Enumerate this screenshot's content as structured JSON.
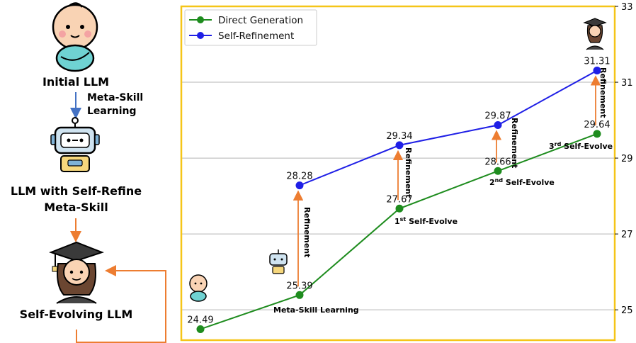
{
  "pipeline": {
    "initial_label": "Initial LLM",
    "meta_skill_label_line1": "Meta-Skill",
    "meta_skill_label_line2": "Learning",
    "selfrefine_label_line1": "LLM with Self-Refine",
    "selfrefine_label_line2": "Meta-Skill",
    "evolving_label": "Self-Evolving LLM",
    "icons": [
      "baby-icon",
      "robot-icon",
      "graduate-icon"
    ],
    "arrow_colors": {
      "blue": "#4472c4",
      "orange": "#ed7d31"
    }
  },
  "chart_data": {
    "type": "line",
    "title": "",
    "xlabel": "",
    "ylabel": "",
    "ylim": [
      24.2,
      33
    ],
    "yticks": [
      25,
      27,
      29,
      31,
      33
    ],
    "grid": "horizontal",
    "legend_position": "top-left",
    "frame_color": "#f5c518",
    "series": [
      {
        "name": "Direct Generation",
        "color": "#1e8c1e",
        "values": [
          24.49,
          25.39,
          27.67,
          28.66,
          29.64
        ]
      },
      {
        "name": "Self-Refinement",
        "color": "#1f1fe6",
        "values": [
          null,
          28.28,
          29.34,
          29.87,
          31.31
        ]
      }
    ],
    "data_labels": {
      "direct": [
        "24.49",
        "25.39",
        "27.67",
        "28.66",
        "29.64"
      ],
      "refine": [
        "",
        "28.28",
        "29.34",
        "29.87",
        "31.31"
      ]
    },
    "annotations": {
      "refinement": "Refinement",
      "stage_1": "Meta-Skill Learning",
      "stage_2_num": "1",
      "stage_2_sup": "st",
      "stage_2_text": " Self-Evolve",
      "stage_3_num": "2",
      "stage_3_sup": "nd",
      "stage_3_text": " Self-Evolve",
      "stage_4_num": "3",
      "stage_4_sup": "rd",
      "stage_4_text": " Self-Evolve"
    }
  }
}
